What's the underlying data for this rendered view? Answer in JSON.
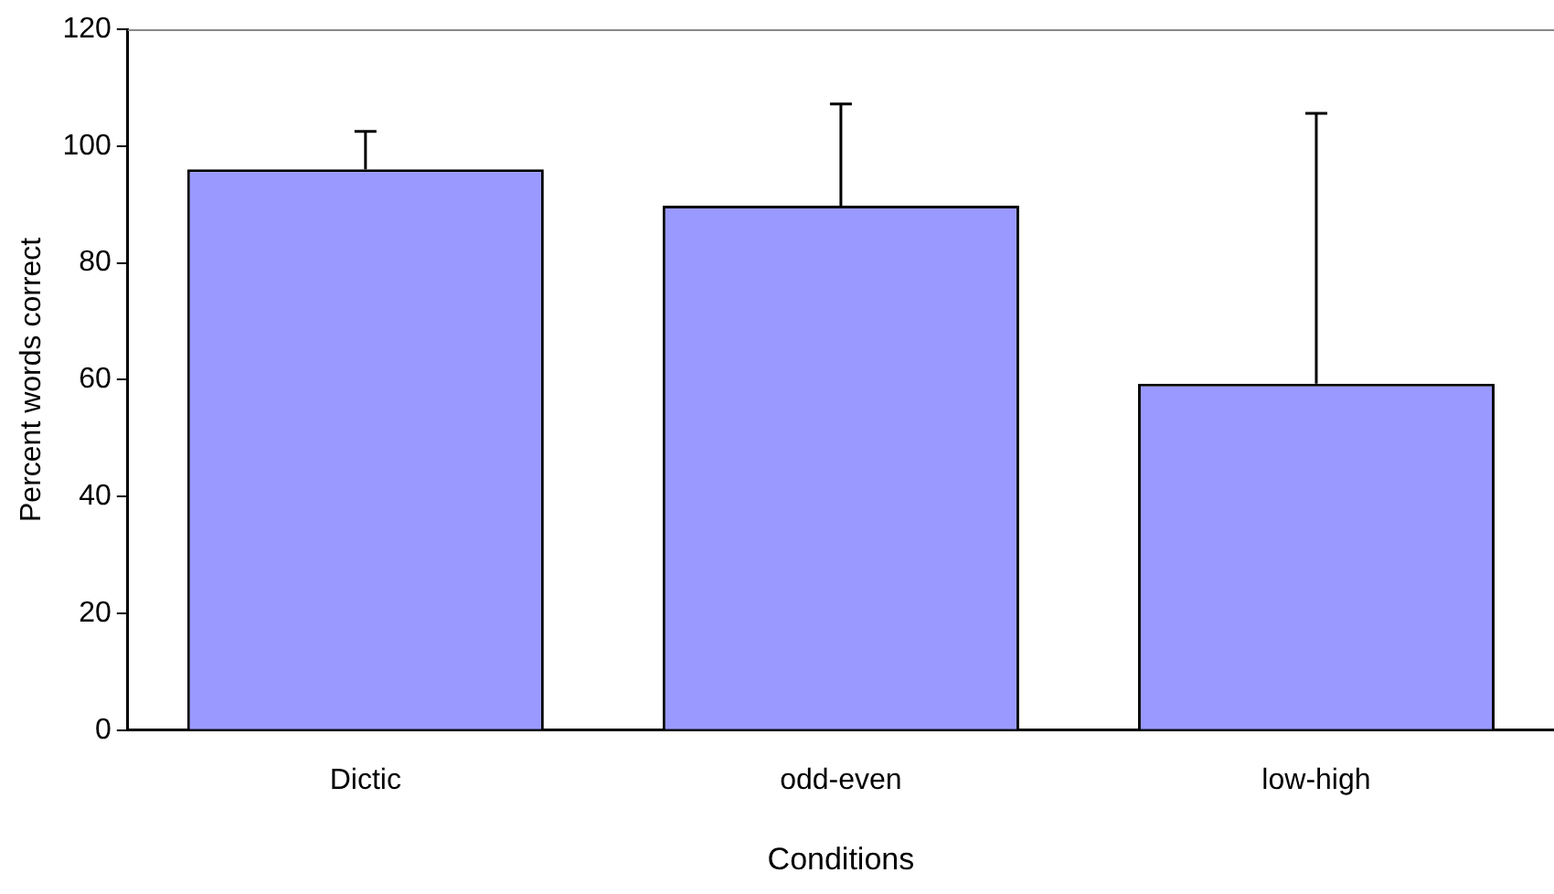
{
  "chart_data": {
    "type": "bar",
    "xlabel": "Conditions",
    "ylabel": "Percent words correct",
    "categories": [
      "Dictic",
      "odd-even",
      "low-high"
    ],
    "values": [
      96,
      89.8,
      59.3
    ],
    "errors": [
      [
        96,
        102.5
      ],
      [
        89.8,
        107.2
      ],
      [
        59.3,
        105.6
      ]
    ],
    "color": "#9999ff",
    "ylim": [
      0,
      120
    ],
    "yticks": [
      0,
      20,
      40,
      60,
      80,
      100,
      120
    ],
    "grid": false,
    "legend": false
  }
}
